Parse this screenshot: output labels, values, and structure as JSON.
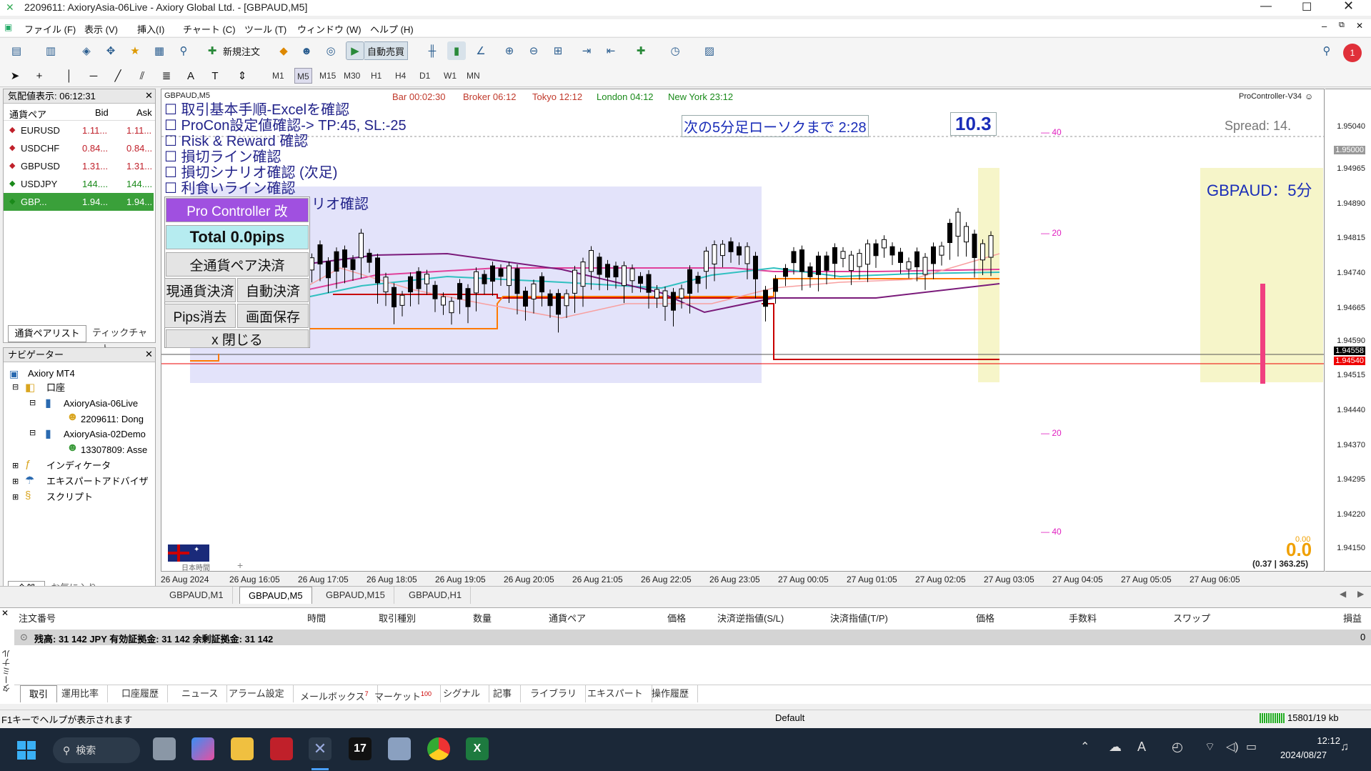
{
  "window": {
    "title": "2209611: AxioryAsia-06Live - Axiory Global Ltd. - [GBPAUD,M5]"
  },
  "menu": [
    "ファイル (F)",
    "表示 (V)",
    "挿入(I)",
    "チャート (C)",
    "ツール (T)",
    "ウィンドウ (W)",
    "ヘルプ (H)"
  ],
  "toolbar": {
    "new_order": "新規注文",
    "auto_trade": "自動売買",
    "notification_count": "1"
  },
  "timeframes": [
    "M1",
    "M5",
    "M15",
    "M30",
    "H1",
    "H4",
    "D1",
    "W1",
    "MN"
  ],
  "active_timeframe": "M5",
  "market_watch": {
    "title": "気配値表示: 06:12:31",
    "col_symbol": "通貨ペア",
    "col_bid": "Bid",
    "col_ask": "Ask",
    "rows": [
      {
        "symbol": "EURUSD",
        "bid": "1.11...",
        "ask": "1.11...",
        "dir": "down"
      },
      {
        "symbol": "USDCHF",
        "bid": "0.84...",
        "ask": "0.84...",
        "dir": "down"
      },
      {
        "symbol": "GBPUSD",
        "bid": "1.31...",
        "ask": "1.31...",
        "dir": "down"
      },
      {
        "symbol": "USDJPY",
        "bid": "144....",
        "ask": "144....",
        "dir": "up"
      },
      {
        "symbol": "GBP...",
        "bid": "1.94...",
        "ask": "1.94...",
        "dir": "up"
      }
    ],
    "tab_list": "通貨ペアリスト",
    "tab_tick": "ティックチャート"
  },
  "navigator": {
    "title": "ナビゲーター",
    "items": [
      "Axiory MT4",
      "口座",
      "AxioryAsia-06Live",
      "2209611: Dong",
      "AxioryAsia-02Demo",
      "13307809: Asse",
      "インディケータ",
      "エキスパートアドバイザ",
      "スクリプト"
    ],
    "tab_all": "全般",
    "tab_fav": "お気に入り"
  },
  "chart": {
    "symbol": "GBPAUD,M5",
    "bar_time": "Bar 00:02:30",
    "broker": "Broker 06:12",
    "tokyo": "Tokyo 12:12",
    "london": "London 04:12",
    "newyork": "New York 23:12",
    "indicator": "ProController-V34",
    "spread": "Spread: 14.",
    "countdown": "次の5分足ローソクまで 2:28",
    "big_value": "10.3",
    "pair_label": "GBPAUD：5分",
    "checklist": [
      "取引基本手順-Excelを確認",
      "ProCon設定値確認-> TP:45, SL:-25",
      "Risk & Reward 確認",
      "損切ライン確認",
      "損切シナリオ確認 (次足)",
      "利食いライン確認",
      "リオ確認"
    ],
    "pc_title": "Pro Controller 改",
    "pc_total": "Total   0.0pips",
    "pc_all_close": "全通貨ペア決済",
    "pc_current_close": "現通貨決済",
    "pc_auto_close": "自動決済",
    "pc_pips_clear": "Pips消去",
    "pc_save": "画面保存",
    "pc_close": "x 閉じる",
    "jp_time": "日本時間",
    "bottom_value": "0.0",
    "bottom_small": "0.00",
    "bottom_ratio": "(0.37 | 363.25)",
    "side_scale": [
      "40",
      "20",
      "20",
      "40"
    ],
    "y_axis": [
      "1.95040",
      "1.95000",
      "1.94965",
      "1.94890",
      "1.94815",
      "1.94740",
      "1.94665",
      "1.94590",
      "1.94558",
      "1.94540",
      "1.94515",
      "1.94440",
      "1.94370",
      "1.94295",
      "1.94220",
      "1.94150"
    ],
    "x_axis": [
      "26 Aug 2024",
      "26 Aug 16:05",
      "26 Aug 17:05",
      "26 Aug 18:05",
      "26 Aug 19:05",
      "26 Aug 20:05",
      "26 Aug 21:05",
      "26 Aug 22:05",
      "26 Aug 23:05",
      "27 Aug 00:05",
      "27 Aug 01:05",
      "27 Aug 02:05",
      "27 Aug 03:05",
      "27 Aug 04:05",
      "27 Aug 05:05",
      "27 Aug 06:05"
    ]
  },
  "chart_tabs": [
    "GBPAUD,M1",
    "GBPAUD,M5",
    "GBPAUD,M15",
    "GBPAUD,H1"
  ],
  "terminal": {
    "headers": [
      "注文番号",
      "時間",
      "取引種別",
      "数量",
      "通貨ペア",
      "価格",
      "決済逆指値(S/L)",
      "決済指値(T/P)",
      "価格",
      "手数料",
      "スワップ",
      "損益"
    ],
    "balance": "残高: 31 142 JPY  有効証拠金: 31 142  余剰証拠金: 31 142",
    "profit": "0",
    "side_label": "ターミナル",
    "tabs": [
      "取引",
      "運用比率",
      "口座履歴",
      "ニュース",
      "アラーム設定",
      "メールボックス",
      "マーケット",
      "シグナル",
      "記事",
      "ライブラリ",
      "エキスパート",
      "操作履歴"
    ],
    "mail_badge": "7",
    "market_badge": "100"
  },
  "status": {
    "help": "F1キーでヘルプが表示されます",
    "profile": "Default",
    "traffic": "15801/19 kb"
  },
  "taskbar": {
    "search": "検索",
    "time": "12:12",
    "date": "2024/08/27"
  }
}
